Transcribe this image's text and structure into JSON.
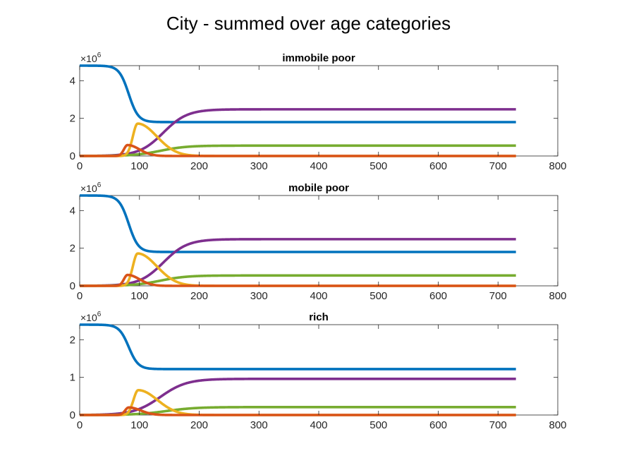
{
  "figure": {
    "title": "City - summed over age categories"
  },
  "chart_data": [
    {
      "type": "line",
      "title": "immobile poor",
      "exponent_label": "×10",
      "exponent_power": "6",
      "xlim": [
        0,
        800
      ],
      "ylim": [
        0,
        4.8
      ],
      "xticks": [
        0,
        100,
        200,
        300,
        400,
        500,
        600,
        700,
        800
      ],
      "yticks": [
        0,
        2,
        4
      ],
      "grid": false,
      "x_end": 730,
      "series": [
        {
          "color": "#0072BD",
          "start": 4.8,
          "end": 1.8,
          "shape": "decline",
          "midpoint": 82,
          "width": 8
        },
        {
          "color": "#7E2F8E",
          "start": 0,
          "end": 2.48,
          "shape": "rise",
          "midpoint": 140,
          "width": 20
        },
        {
          "color": "#77AC30",
          "start": 0,
          "end": 0.55,
          "shape": "rise",
          "midpoint": 135,
          "width": 22
        },
        {
          "color": "#EDB120",
          "peak": 1.72,
          "peak_x": 97,
          "shape": "pulse",
          "rise_width": 8,
          "fall_width": 32
        },
        {
          "color": "#D95319",
          "peak": 0.58,
          "peak_x": 80,
          "shape": "pulse",
          "rise_width": 6,
          "fall_width": 20
        }
      ]
    },
    {
      "type": "line",
      "title": "mobile poor",
      "exponent_label": "×10",
      "exponent_power": "6",
      "xlim": [
        0,
        800
      ],
      "ylim": [
        0,
        4.8
      ],
      "xticks": [
        0,
        100,
        200,
        300,
        400,
        500,
        600,
        700,
        800
      ],
      "yticks": [
        0,
        2,
        4
      ],
      "grid": false,
      "x_end": 730,
      "series": [
        {
          "color": "#0072BD",
          "start": 4.8,
          "end": 1.8,
          "shape": "decline",
          "midpoint": 82,
          "width": 8
        },
        {
          "color": "#7E2F8E",
          "start": 0,
          "end": 2.48,
          "shape": "rise",
          "midpoint": 140,
          "width": 20
        },
        {
          "color": "#77AC30",
          "start": 0,
          "end": 0.55,
          "shape": "rise",
          "midpoint": 135,
          "width": 22
        },
        {
          "color": "#EDB120",
          "peak": 1.72,
          "peak_x": 97,
          "shape": "pulse",
          "rise_width": 8,
          "fall_width": 32
        },
        {
          "color": "#D95319",
          "peak": 0.58,
          "peak_x": 80,
          "shape": "pulse",
          "rise_width": 6,
          "fall_width": 20
        }
      ]
    },
    {
      "type": "line",
      "title": "rich",
      "exponent_label": "×10",
      "exponent_power": "6",
      "xlim": [
        0,
        800
      ],
      "ylim": [
        0,
        2.4
      ],
      "xticks": [
        0,
        100,
        200,
        300,
        400,
        500,
        600,
        700,
        800
      ],
      "yticks": [
        0,
        1,
        2
      ],
      "grid": false,
      "x_end": 730,
      "series": [
        {
          "color": "#0072BD",
          "start": 2.4,
          "end": 1.22,
          "shape": "decline",
          "midpoint": 82,
          "width": 8
        },
        {
          "color": "#7E2F8E",
          "start": 0,
          "end": 0.96,
          "shape": "rise",
          "midpoint": 135,
          "width": 22
        },
        {
          "color": "#77AC30",
          "start": 0,
          "end": 0.21,
          "shape": "rise",
          "midpoint": 145,
          "width": 25
        },
        {
          "color": "#EDB120",
          "peak": 0.66,
          "peak_x": 98,
          "shape": "pulse",
          "rise_width": 8,
          "fall_width": 32
        },
        {
          "color": "#D95319",
          "peak": 0.2,
          "peak_x": 82,
          "shape": "pulse",
          "rise_width": 6,
          "fall_width": 20
        }
      ]
    }
  ]
}
